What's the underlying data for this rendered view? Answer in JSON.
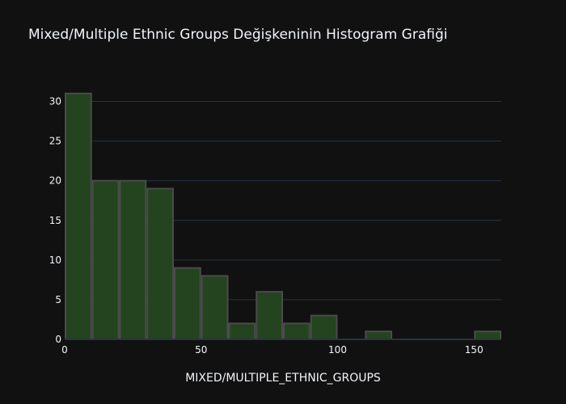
{
  "chart_data": {
    "type": "bar",
    "title": "Mixed/Multiple Ethnic Groups Değişkeninin Histogram Grafiği",
    "xlabel": "MIXED/MULTIPLE_ETHNIC_GROUPS",
    "ylabel": "",
    "bin_width": 10,
    "bins": [
      {
        "start": 0,
        "end": 10,
        "count": 31
      },
      {
        "start": 10,
        "end": 20,
        "count": 20
      },
      {
        "start": 20,
        "end": 30,
        "count": 20
      },
      {
        "start": 30,
        "end": 40,
        "count": 19
      },
      {
        "start": 40,
        "end": 50,
        "count": 9
      },
      {
        "start": 50,
        "end": 60,
        "count": 8
      },
      {
        "start": 60,
        "end": 70,
        "count": 2
      },
      {
        "start": 70,
        "end": 80,
        "count": 6
      },
      {
        "start": 80,
        "end": 90,
        "count": 2
      },
      {
        "start": 90,
        "end": 100,
        "count": 3
      },
      {
        "start": 100,
        "end": 110,
        "count": 0
      },
      {
        "start": 110,
        "end": 120,
        "count": 1
      },
      {
        "start": 120,
        "end": 130,
        "count": 0
      },
      {
        "start": 130,
        "end": 140,
        "count": 0
      },
      {
        "start": 140,
        "end": 150,
        "count": 0
      },
      {
        "start": 150,
        "end": 160,
        "count": 1
      }
    ],
    "xlim": [
      0,
      160
    ],
    "ylim": [
      0,
      32.6
    ],
    "xticks": [
      0,
      50,
      100,
      150
    ],
    "yticks": [
      0,
      5,
      10,
      15,
      20,
      25,
      30
    ],
    "grid": true,
    "colors": {
      "background": "#111111",
      "bar_fill": "#23441e",
      "bar_edge": "#4b4b4b",
      "grid": "#283442",
      "text": "#f2f5fa"
    }
  }
}
